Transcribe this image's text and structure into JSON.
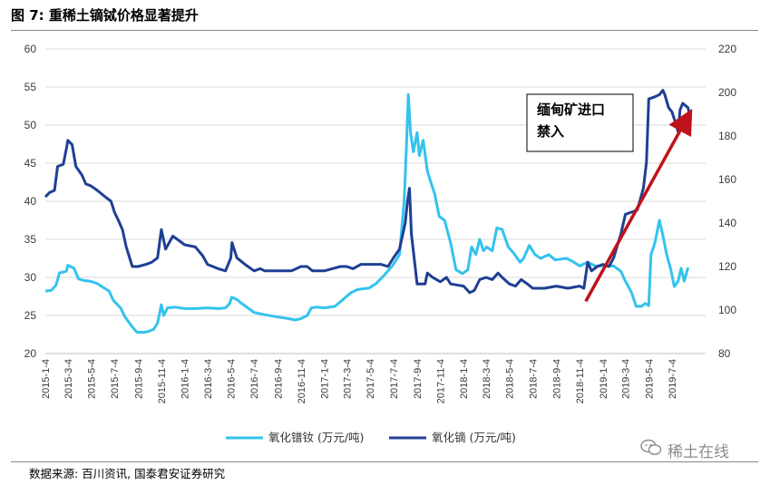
{
  "figure": {
    "title": "图 7:  重稀土镝铽价格显著提升",
    "source": "数据来源:  百川资讯,  国泰君安证券研究",
    "watermark": "稀土在线",
    "watermark_icon": "wechat-icon"
  },
  "chart_data": {
    "type": "line",
    "title": "",
    "xlabel": "",
    "ylabel": "",
    "ylabel_right": "",
    "ylim": [
      20,
      60
    ],
    "ylim_right": [
      80,
      220
    ],
    "yticks": [
      20,
      25,
      30,
      35,
      40,
      45,
      50,
      55,
      60
    ],
    "yticks_right": [
      80,
      100,
      120,
      140,
      160,
      180,
      200,
      220
    ],
    "x_range": [
      "2015-01-04",
      "2019-09-30"
    ],
    "x_ticks": [
      "2015-1-4",
      "2015-3-4",
      "2015-5-4",
      "2015-7-4",
      "2015-9-4",
      "2015-11-4",
      "2016-1-4",
      "2016-3-4",
      "2016-5-4",
      "2016-7-4",
      "2016-9-4",
      "2016-11-4",
      "2017-1-4",
      "2017-3-4",
      "2017-5-4",
      "2017-7-4",
      "2017-9-4",
      "2017-11-4",
      "2018-1-4",
      "2018-3-4",
      "2018-5-4",
      "2018-7-4",
      "2018-9-4",
      "2018-11-4",
      "2019-1-4",
      "2019-3-4",
      "2019-5-4",
      "2019-7-4"
    ],
    "grid": "horizontal",
    "legend": "bottom",
    "series": [
      {
        "name": "氧化镨钕 (万元/吨)",
        "axis": "left",
        "color": "#33c3ee",
        "points": [
          [
            "2015-01-04",
            28.2
          ],
          [
            "2015-01-20",
            28.3
          ],
          [
            "2015-02-01",
            29.0
          ],
          [
            "2015-02-10",
            30.6
          ],
          [
            "2015-02-28",
            30.8
          ],
          [
            "2015-03-04",
            31.6
          ],
          [
            "2015-03-20",
            31.2
          ],
          [
            "2015-04-01",
            29.8
          ],
          [
            "2015-04-15",
            29.6
          ],
          [
            "2015-05-01",
            29.5
          ],
          [
            "2015-05-20",
            29.2
          ],
          [
            "2015-06-01",
            28.8
          ],
          [
            "2015-06-20",
            28.2
          ],
          [
            "2015-07-01",
            27.0
          ],
          [
            "2015-07-20",
            26.0
          ],
          [
            "2015-08-01",
            24.8
          ],
          [
            "2015-08-20",
            23.5
          ],
          [
            "2015-09-01",
            22.8
          ],
          [
            "2015-09-20",
            22.8
          ],
          [
            "2015-10-01",
            22.9
          ],
          [
            "2015-10-15",
            23.2
          ],
          [
            "2015-10-25",
            24.0
          ],
          [
            "2015-11-04",
            26.4
          ],
          [
            "2015-11-10",
            25.0
          ],
          [
            "2015-11-20",
            26.0
          ],
          [
            "2015-12-10",
            26.1
          ],
          [
            "2016-01-04",
            25.9
          ],
          [
            "2016-02-01",
            25.9
          ],
          [
            "2016-03-04",
            26.0
          ],
          [
            "2016-04-01",
            25.9
          ],
          [
            "2016-04-20",
            26.0
          ],
          [
            "2016-05-01",
            26.6
          ],
          [
            "2016-05-06",
            27.4
          ],
          [
            "2016-05-20",
            27.1
          ],
          [
            "2016-06-01",
            26.6
          ],
          [
            "2016-06-20",
            25.9
          ],
          [
            "2016-07-04",
            25.4
          ],
          [
            "2016-08-01",
            25.1
          ],
          [
            "2016-09-04",
            24.8
          ],
          [
            "2016-10-01",
            24.6
          ],
          [
            "2016-10-20",
            24.4
          ],
          [
            "2016-11-04",
            24.6
          ],
          [
            "2016-11-20",
            25.0
          ],
          [
            "2016-12-01",
            26.0
          ],
          [
            "2016-12-15",
            26.1
          ],
          [
            "2017-01-04",
            26.0
          ],
          [
            "2017-02-01",
            26.2
          ],
          [
            "2017-03-01",
            27.4
          ],
          [
            "2017-03-15",
            28.0
          ],
          [
            "2017-04-01",
            28.4
          ],
          [
            "2017-05-01",
            28.6
          ],
          [
            "2017-05-20",
            29.2
          ],
          [
            "2017-06-10",
            30.3
          ],
          [
            "2017-07-01",
            31.5
          ],
          [
            "2017-07-20",
            33.0
          ],
          [
            "2017-08-01",
            40.0
          ],
          [
            "2017-08-07",
            47.0
          ],
          [
            "2017-08-12",
            54.0
          ],
          [
            "2017-08-18",
            49.0
          ],
          [
            "2017-08-25",
            46.5
          ],
          [
            "2017-09-04",
            49.0
          ],
          [
            "2017-09-10",
            46.0
          ],
          [
            "2017-09-20",
            48.0
          ],
          [
            "2017-10-01",
            44.0
          ],
          [
            "2017-10-10",
            42.5
          ],
          [
            "2017-10-20",
            41.0
          ],
          [
            "2017-11-01",
            38.0
          ],
          [
            "2017-11-15",
            37.5
          ],
          [
            "2017-12-01",
            34.5
          ],
          [
            "2017-12-15",
            31.0
          ],
          [
            "2018-01-01",
            30.5
          ],
          [
            "2018-01-15",
            31.0
          ],
          [
            "2018-01-25",
            34.0
          ],
          [
            "2018-02-05",
            33.0
          ],
          [
            "2018-02-15",
            35.0
          ],
          [
            "2018-02-25",
            33.5
          ],
          [
            "2018-03-05",
            34.0
          ],
          [
            "2018-03-20",
            33.5
          ],
          [
            "2018-04-01",
            36.5
          ],
          [
            "2018-04-15",
            36.3
          ],
          [
            "2018-05-01",
            34.0
          ],
          [
            "2018-05-15",
            33.2
          ],
          [
            "2018-06-01",
            32.0
          ],
          [
            "2018-06-10",
            32.5
          ],
          [
            "2018-06-25",
            34.2
          ],
          [
            "2018-07-10",
            33.0
          ],
          [
            "2018-07-25",
            32.5
          ],
          [
            "2018-08-15",
            33.0
          ],
          [
            "2018-09-01",
            32.3
          ],
          [
            "2018-10-01",
            32.5
          ],
          [
            "2018-10-20",
            32.0
          ],
          [
            "2018-11-04",
            31.5
          ],
          [
            "2018-11-25",
            32.0
          ],
          [
            "2018-12-15",
            31.5
          ],
          [
            "2019-01-04",
            31.5
          ],
          [
            "2019-02-01",
            31.5
          ],
          [
            "2019-02-20",
            30.8
          ],
          [
            "2019-03-04",
            29.5
          ],
          [
            "2019-03-20",
            28.0
          ],
          [
            "2019-04-01",
            26.2
          ],
          [
            "2019-04-15",
            26.2
          ],
          [
            "2019-04-25",
            26.6
          ],
          [
            "2019-05-04",
            26.3
          ],
          [
            "2019-05-10",
            33.0
          ],
          [
            "2019-05-20",
            34.5
          ],
          [
            "2019-06-01",
            37.5
          ],
          [
            "2019-06-10",
            35.5
          ],
          [
            "2019-06-20",
            33.0
          ],
          [
            "2019-07-01",
            31.0
          ],
          [
            "2019-07-10",
            28.8
          ],
          [
            "2019-07-20",
            29.5
          ],
          [
            "2019-07-28",
            31.2
          ],
          [
            "2019-08-05",
            29.5
          ],
          [
            "2019-08-15",
            31.3
          ]
        ]
      },
      {
        "name": "氧化镝 (万元/吨)",
        "axis": "right",
        "color": "#1f3f94",
        "points": [
          [
            "2015-01-04",
            152
          ],
          [
            "2015-01-15",
            154
          ],
          [
            "2015-01-28",
            155
          ],
          [
            "2015-02-05",
            166
          ],
          [
            "2015-02-20",
            167
          ],
          [
            "2015-03-01",
            175
          ],
          [
            "2015-03-04",
            178
          ],
          [
            "2015-03-15",
            176
          ],
          [
            "2015-03-25",
            166
          ],
          [
            "2015-04-10",
            162
          ],
          [
            "2015-04-20",
            158
          ],
          [
            "2015-05-04",
            157
          ],
          [
            "2015-05-20",
            155
          ],
          [
            "2015-06-10",
            152
          ],
          [
            "2015-06-25",
            150
          ],
          [
            "2015-07-04",
            145
          ],
          [
            "2015-07-15",
            141
          ],
          [
            "2015-07-25",
            137
          ],
          [
            "2015-08-04",
            129
          ],
          [
            "2015-08-20",
            120
          ],
          [
            "2015-09-04",
            120
          ],
          [
            "2015-09-25",
            121
          ],
          [
            "2015-10-10",
            122
          ],
          [
            "2015-10-25",
            124
          ],
          [
            "2015-11-04",
            137
          ],
          [
            "2015-11-15",
            128
          ],
          [
            "2015-12-04",
            134
          ],
          [
            "2016-01-04",
            130
          ],
          [
            "2016-02-01",
            129
          ],
          [
            "2016-02-20",
            125
          ],
          [
            "2016-03-04",
            121
          ],
          [
            "2016-04-01",
            119
          ],
          [
            "2016-04-20",
            118
          ],
          [
            "2016-05-04",
            124
          ],
          [
            "2016-05-07",
            131
          ],
          [
            "2016-05-20",
            124
          ],
          [
            "2016-06-10",
            121
          ],
          [
            "2016-07-04",
            118
          ],
          [
            "2016-07-20",
            119
          ],
          [
            "2016-08-01",
            118
          ],
          [
            "2016-09-04",
            118
          ],
          [
            "2016-10-10",
            118
          ],
          [
            "2016-11-04",
            120
          ],
          [
            "2016-11-20",
            120
          ],
          [
            "2016-12-04",
            118
          ],
          [
            "2017-01-04",
            118
          ],
          [
            "2017-01-25",
            119
          ],
          [
            "2017-02-15",
            120
          ],
          [
            "2017-03-04",
            120
          ],
          [
            "2017-03-20",
            119
          ],
          [
            "2017-04-10",
            121
          ],
          [
            "2017-05-04",
            121
          ],
          [
            "2017-06-01",
            121
          ],
          [
            "2017-06-20",
            120
          ],
          [
            "2017-07-04",
            124
          ],
          [
            "2017-07-20",
            128
          ],
          [
            "2017-08-04",
            140
          ],
          [
            "2017-08-10",
            150
          ],
          [
            "2017-08-15",
            156
          ],
          [
            "2017-08-20",
            135
          ],
          [
            "2017-09-04",
            112
          ],
          [
            "2017-09-25",
            112
          ],
          [
            "2017-10-01",
            117
          ],
          [
            "2017-10-15",
            115
          ],
          [
            "2017-10-25",
            114
          ],
          [
            "2017-11-04",
            113
          ],
          [
            "2017-11-20",
            115
          ],
          [
            "2017-12-01",
            112
          ],
          [
            "2018-01-04",
            111
          ],
          [
            "2018-01-20",
            108
          ],
          [
            "2018-02-01",
            109
          ],
          [
            "2018-02-15",
            114
          ],
          [
            "2018-03-04",
            115
          ],
          [
            "2018-03-20",
            114
          ],
          [
            "2018-04-04",
            117
          ],
          [
            "2018-04-15",
            115
          ],
          [
            "2018-05-04",
            112
          ],
          [
            "2018-05-20",
            111
          ],
          [
            "2018-06-04",
            114
          ],
          [
            "2018-06-20",
            112
          ],
          [
            "2018-07-04",
            110
          ],
          [
            "2018-08-04",
            110
          ],
          [
            "2018-09-04",
            111
          ],
          [
            "2018-10-04",
            110
          ],
          [
            "2018-11-04",
            111
          ],
          [
            "2018-11-15",
            110
          ],
          [
            "2018-11-25",
            122
          ],
          [
            "2018-12-05",
            118
          ],
          [
            "2018-12-20",
            120
          ],
          [
            "2019-01-04",
            121
          ],
          [
            "2019-01-20",
            120
          ],
          [
            "2019-02-01",
            124
          ],
          [
            "2019-02-20",
            135
          ],
          [
            "2019-03-04",
            144
          ],
          [
            "2019-03-20",
            145
          ],
          [
            "2019-04-04",
            146
          ],
          [
            "2019-04-20",
            156
          ],
          [
            "2019-04-28",
            168
          ],
          [
            "2019-05-04",
            197
          ],
          [
            "2019-05-20",
            198
          ],
          [
            "2019-06-01",
            199
          ],
          [
            "2019-06-10",
            201
          ],
          [
            "2019-06-15",
            199
          ],
          [
            "2019-06-25",
            193
          ],
          [
            "2019-07-04",
            191
          ],
          [
            "2019-07-15",
            185
          ],
          [
            "2019-07-20",
            182
          ],
          [
            "2019-07-25",
            192
          ],
          [
            "2019-08-01",
            195
          ],
          [
            "2019-08-15",
            193
          ],
          [
            "2019-08-20",
            189
          ]
        ]
      }
    ],
    "annotation": {
      "text_line1": "缅甸矿进口",
      "text_line2": "禁入",
      "arrow_from": [
        "2018-11-20",
        104
      ],
      "arrow_to": [
        "2019-08-18",
        190
      ],
      "arrow_axis": "right",
      "arrow_color": "#c0121b"
    }
  }
}
